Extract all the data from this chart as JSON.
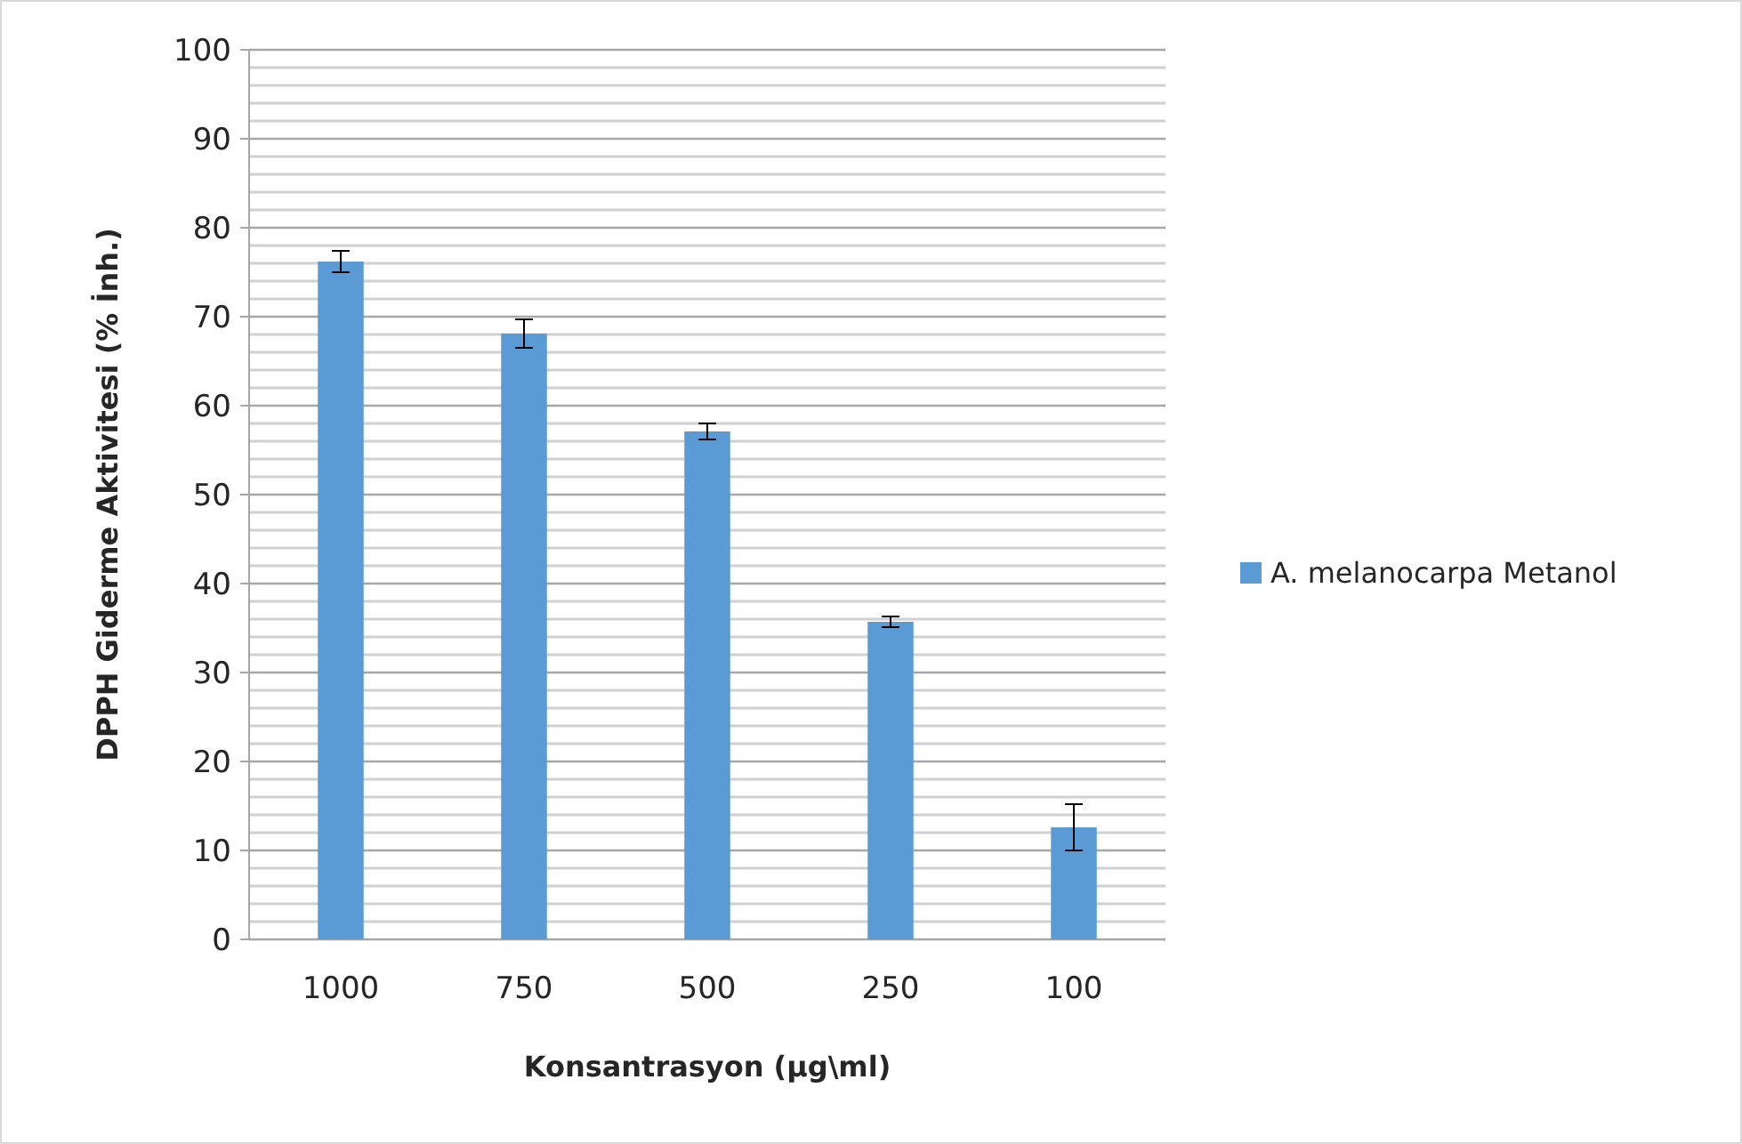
{
  "chart_data": {
    "type": "bar",
    "xlabel": "Konsantrasyon  (µg\\ml)",
    "ylabel": "DPPH Giderme Aktivitesi (% İnh.)",
    "categories": [
      "1000",
      "750",
      "500",
      "250",
      "100"
    ],
    "series": [
      {
        "name": "A. melanocarpa Metanol",
        "color": "#5b9bd5",
        "values": [
          76.2,
          68.1,
          57.1,
          35.7,
          12.6
        ],
        "errors": [
          1.2,
          1.6,
          0.9,
          0.6,
          2.6
        ]
      }
    ],
    "ylim": [
      0,
      100
    ],
    "yticks": [
      0,
      {
        "value": 2,
        "label": null
      },
      {
        "value": 4,
        "label": null
      },
      {
        "value": 6,
        "label": null
      },
      {
        "value": 8,
        "label": null
      },
      10,
      {
        "value": 12,
        "label": null
      },
      {
        "value": 14,
        "label": null
      },
      {
        "value": 16,
        "label": null
      },
      {
        "value": 18,
        "label": null
      },
      20,
      {
        "value": 22,
        "label": null
      },
      {
        "value": 24,
        "label": null
      },
      {
        "value": 26,
        "label": null
      },
      {
        "value": 28,
        "label": null
      },
      30,
      {
        "value": 32,
        "label": null
      },
      {
        "value": 34,
        "label": null
      },
      {
        "value": 36,
        "label": null
      },
      {
        "value": 38,
        "label": null
      },
      40,
      {
        "value": 42,
        "label": null
      },
      {
        "value": 44,
        "label": null
      },
      {
        "value": 46,
        "label": null
      },
      {
        "value": 48,
        "label": null
      },
      50,
      {
        "value": 52,
        "label": null
      },
      {
        "value": 54,
        "label": null
      },
      {
        "value": 56,
        "label": null
      },
      {
        "value": 58,
        "label": null
      },
      60,
      {
        "value": 62,
        "label": null
      },
      {
        "value": 64,
        "label": null
      },
      {
        "value": 66,
        "label": null
      },
      {
        "value": 68,
        "label": null
      },
      70,
      {
        "value": 72,
        "label": null
      },
      {
        "value": 74,
        "label": null
      },
      {
        "value": 76,
        "label": null
      },
      {
        "value": 78,
        "label": null
      },
      80,
      {
        "value": 82,
        "label": null
      },
      {
        "value": 84,
        "label": null
      },
      {
        "value": 86,
        "label": null
      },
      {
        "value": 88,
        "label": null
      },
      90,
      {
        "value": 92,
        "label": null
      },
      {
        "value": 94,
        "label": null
      },
      {
        "value": 96,
        "label": null
      },
      {
        "value": 98,
        "label": null
      },
      100
    ],
    "grid": true,
    "legend": "right"
  }
}
